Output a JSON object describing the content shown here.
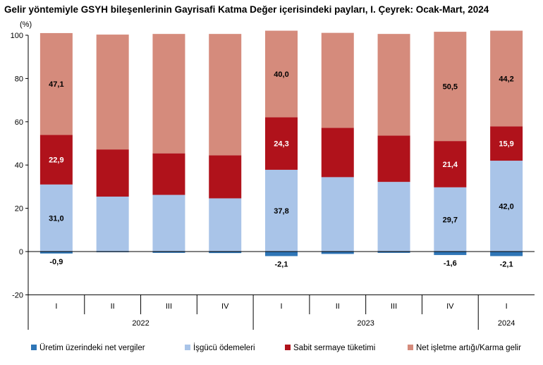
{
  "chart_data": {
    "type": "bar",
    "stacked": true,
    "title": "Gelir yöntemiyle GSYH bileşenlerinin Gayrisafi Katma Değer içerisindeki payları, I. Çeyrek: Ocak-Mart, 2024",
    "unit_label": "(%)",
    "ylim": [
      -20,
      100
    ],
    "yticks": [
      "100",
      "80",
      "60",
      "40",
      "20",
      "0",
      "-20"
    ],
    "ytick_values": [
      100,
      80,
      60,
      40,
      20,
      0,
      -20
    ],
    "grid": false,
    "legend_position": "bottom",
    "categories": [
      "I",
      "II",
      "III",
      "IV",
      "I",
      "II",
      "III",
      "IV",
      "I"
    ],
    "years": [
      {
        "label": "2022",
        "start": 0,
        "end": 3
      },
      {
        "label": "2023",
        "start": 4,
        "end": 7
      },
      {
        "label": "2024",
        "start": 8,
        "end": 8
      }
    ],
    "series": [
      {
        "name": "Üretim üzerindeki net vergiler",
        "color": "#2e75b6",
        "values": [
          -0.9,
          -0.3,
          -0.6,
          -0.7,
          -2.1,
          -1.1,
          -0.6,
          -1.6,
          -2.1
        ],
        "labels": [
          "-0,9",
          "",
          "",
          "",
          "-2,1",
          "",
          "",
          "-1,6",
          "-2,1"
        ]
      },
      {
        "name": "İşgücü ödemeleri",
        "color": "#a9c4e8",
        "values": [
          31.0,
          25.4,
          26.2,
          24.6,
          37.8,
          34.4,
          32.2,
          29.7,
          42.0
        ],
        "labels": [
          "31,0",
          "",
          "",
          "",
          "37,8",
          "",
          "",
          "29,7",
          "42,0"
        ]
      },
      {
        "name": "Sabit sermaye tüketimi",
        "color": "#b0121b",
        "values": [
          22.9,
          21.8,
          19.2,
          19.9,
          24.3,
          22.8,
          21.4,
          21.4,
          15.9
        ],
        "labels": [
          "22,9",
          "",
          "",
          "",
          "24,3",
          "",
          "",
          "21,4",
          "15,9"
        ]
      },
      {
        "name": "Net işletme artığı/Karma gelir",
        "color": "#d58b7c",
        "values": [
          47.1,
          53.1,
          55.2,
          56.1,
          40.0,
          43.9,
          47.0,
          50.5,
          44.2
        ],
        "labels": [
          "47,1",
          "",
          "",
          "",
          "40,0",
          "",
          "",
          "50,5",
          "44,2"
        ]
      }
    ]
  }
}
